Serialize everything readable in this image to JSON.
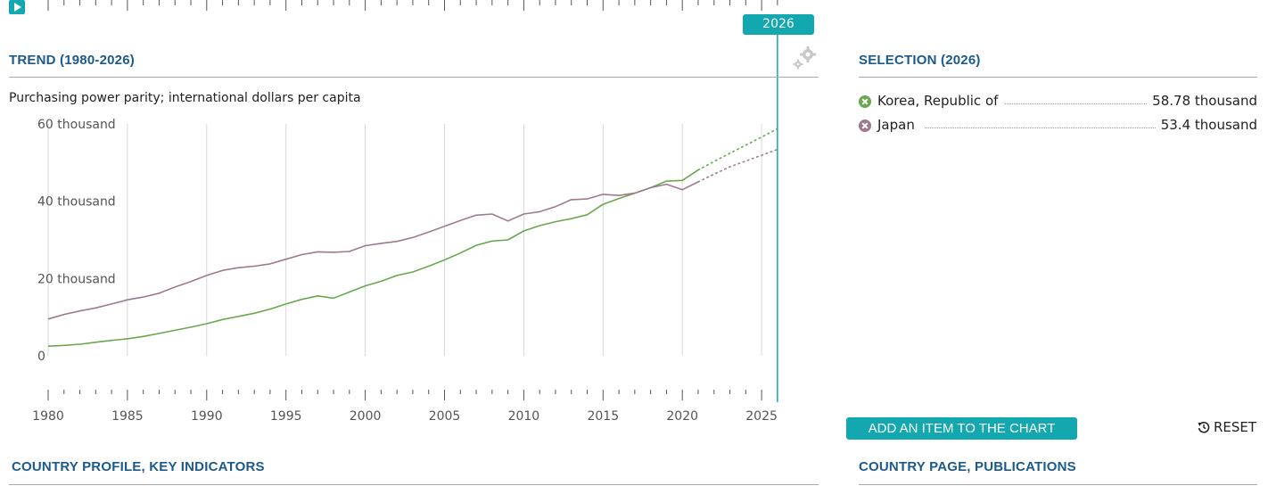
{
  "controls": {
    "play_icon": "play-icon",
    "current_year": "2026",
    "settings_icon": "gear-icon"
  },
  "trend": {
    "title": "TREND (1980-2026)",
    "subtitle": "Purchasing power parity; international dollars per capita"
  },
  "selection": {
    "title": "SELECTION (2026)",
    "items": [
      {
        "name": "Korea, Republic of",
        "value": "58.78 thousand",
        "color": "#6aa84f"
      },
      {
        "name": "Japan",
        "value": "53.4 thousand",
        "color": "#9e7a90"
      }
    ]
  },
  "buttons": {
    "add_item": "ADD AN ITEM TO THE CHART",
    "reset": "RESET"
  },
  "footer": {
    "left_title": "COUNTRY PROFILE, KEY INDICATORS",
    "right_title": "COUNTRY PAGE, PUBLICATIONS"
  },
  "chart_data": {
    "type": "line",
    "x_range": [
      1980,
      2026
    ],
    "ylim": [
      0,
      60000
    ],
    "y_ticks": [
      {
        "value": 0,
        "label": "0"
      },
      {
        "value": 20000,
        "label": "20 thousand"
      },
      {
        "value": 40000,
        "label": "40 thousand"
      },
      {
        "value": 60000,
        "label": "60 thousand"
      }
    ],
    "x_ticks": [
      1980,
      1985,
      1990,
      1995,
      2000,
      2005,
      2010,
      2015,
      2020,
      2025
    ],
    "grid": true,
    "projection_from": 2021,
    "series": [
      {
        "name": "Korea, Republic of",
        "color": "#6aa84f",
        "x": [
          1980,
          1981,
          1982,
          1983,
          1984,
          1985,
          1986,
          1987,
          1988,
          1989,
          1990,
          1991,
          1992,
          1993,
          1994,
          1995,
          1996,
          1997,
          1998,
          1999,
          2000,
          2001,
          2002,
          2003,
          2004,
          2005,
          2006,
          2007,
          2008,
          2009,
          2010,
          2011,
          2012,
          2013,
          2014,
          2015,
          2016,
          2017,
          2018,
          2019,
          2020,
          2021,
          2022,
          2023,
          2024,
          2025,
          2026
        ],
        "values": [
          2500,
          2700,
          3000,
          3500,
          4000,
          4400,
          5000,
          5800,
          6600,
          7400,
          8300,
          9400,
          10200,
          11000,
          12100,
          13400,
          14600,
          15500,
          14900,
          16500,
          18100,
          19300,
          20800,
          21700,
          23200,
          24800,
          26600,
          28600,
          29700,
          30000,
          32300,
          33700,
          34700,
          35500,
          36500,
          39200,
          40700,
          42100,
          43500,
          45200,
          45400,
          48100,
          50300,
          52400,
          54500,
          56600,
          58780
        ]
      },
      {
        "name": "Japan",
        "color": "#9e7a90",
        "x": [
          1980,
          1981,
          1982,
          1983,
          1984,
          1985,
          1986,
          1987,
          1988,
          1989,
          1990,
          1991,
          1992,
          1993,
          1994,
          1995,
          1996,
          1997,
          1998,
          1999,
          2000,
          2001,
          2002,
          2003,
          2004,
          2005,
          2006,
          2007,
          2008,
          2009,
          2010,
          2011,
          2012,
          2013,
          2014,
          2015,
          2016,
          2017,
          2018,
          2019,
          2020,
          2021,
          2022,
          2023,
          2024,
          2025,
          2026
        ],
        "values": [
          9500,
          10700,
          11600,
          12400,
          13400,
          14500,
          15200,
          16200,
          17800,
          19200,
          20800,
          22100,
          22800,
          23200,
          23800,
          25000,
          26200,
          26900,
          26800,
          27000,
          28500,
          29100,
          29600,
          30600,
          32000,
          33500,
          35000,
          36400,
          36700,
          34900,
          36700,
          37300,
          38600,
          40400,
          40600,
          41800,
          41500,
          42100,
          43500,
          44400,
          43000,
          45000,
          47000,
          48900,
          50400,
          51900,
          53400
        ]
      }
    ]
  }
}
